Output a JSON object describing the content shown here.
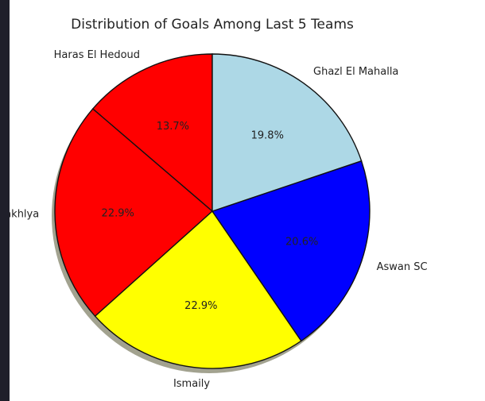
{
  "chart_data": {
    "type": "pie",
    "title": "Distribution of Goals Among Last 5 Teams",
    "shadow": true,
    "start_angle_deg": 90,
    "direction": "counterclockwise",
    "slices": [
      {
        "label": "Haras El Hedoud",
        "value": 13.7,
        "pct_label": "13.7%",
        "color": "#ff0000"
      },
      {
        "label": "El Dakhlya",
        "value": 22.9,
        "pct_label": "22.9%",
        "color": "#ff0000"
      },
      {
        "label": "Ismaily",
        "value": 22.9,
        "pct_label": "22.9%",
        "color": "#ffff00"
      },
      {
        "label": "Aswan SC",
        "value": 20.6,
        "pct_label": "20.6%",
        "color": "#0000ff"
      },
      {
        "label": "Ghazl El Mahalla",
        "value": 19.8,
        "pct_label": "19.8%",
        "color": "#add8e6"
      }
    ]
  }
}
